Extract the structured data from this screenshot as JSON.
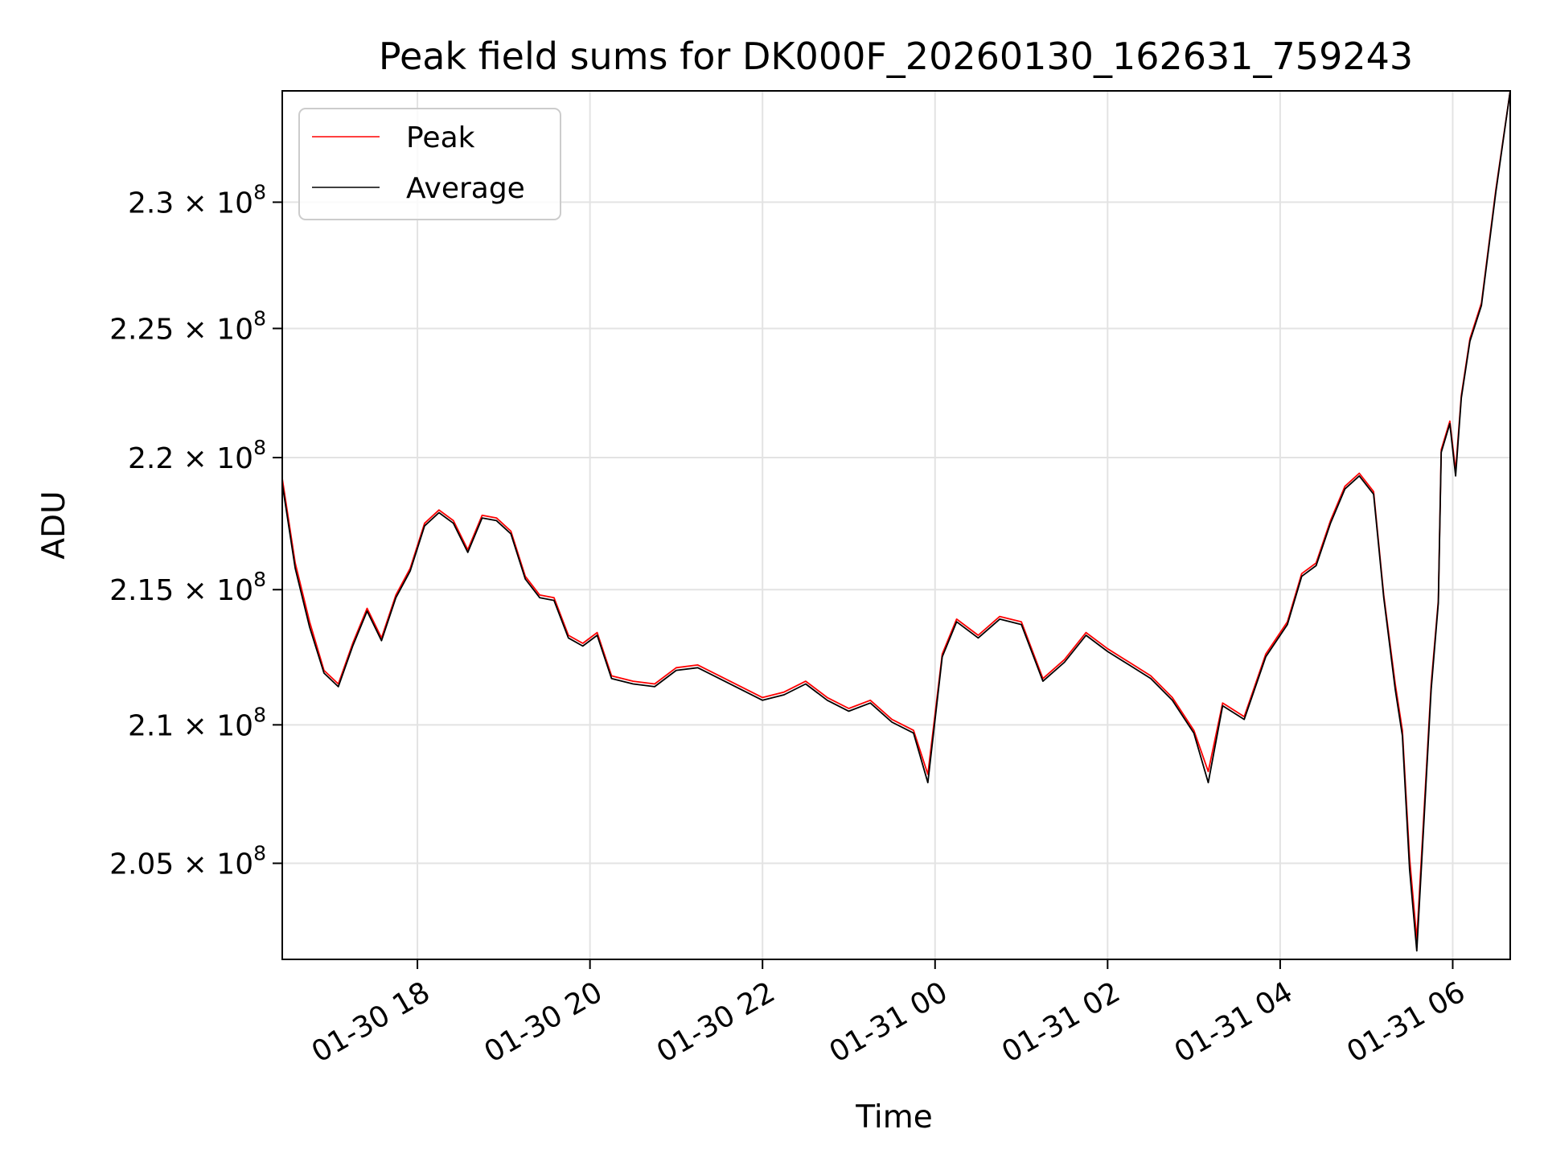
{
  "chart_data": {
    "type": "line",
    "title": "Peak field sums for DK000F_20260130_162631_759243",
    "xlabel": "Time",
    "ylabel": "ADU",
    "y_scale": "log",
    "ylim": [
      201600000,
      234500000
    ],
    "xlim": [
      "2026-01-30 16:26",
      "2026-01-31 06:40"
    ],
    "grid": true,
    "legend_placement": "top-left",
    "x_ticks": [
      {
        "value": "2026-01-30 18:00",
        "label": "01-30 18"
      },
      {
        "value": "2026-01-30 20:00",
        "label": "01-30 20"
      },
      {
        "value": "2026-01-30 22:00",
        "label": "01-30 22"
      },
      {
        "value": "2026-01-31 00:00",
        "label": "01-31 00"
      },
      {
        "value": "2026-01-31 02:00",
        "label": "01-31 02"
      },
      {
        "value": "2026-01-31 04:00",
        "label": "01-31 04"
      },
      {
        "value": "2026-01-31 06:00",
        "label": "01-31 06"
      }
    ],
    "y_ticks": [
      {
        "value": 205000000,
        "mantissa": "2.05"
      },
      {
        "value": 210000000,
        "mantissa": "2.1"
      },
      {
        "value": 215000000,
        "mantissa": "2.15"
      },
      {
        "value": 220000000,
        "mantissa": "2.2"
      },
      {
        "value": 225000000,
        "mantissa": "2.25"
      },
      {
        "value": 230000000,
        "mantissa": "2.3"
      }
    ],
    "tick_suffix": "× 10",
    "tick_exponent": "8",
    "series": [
      {
        "name": "Peak",
        "color": "#ff0000",
        "points": [
          [
            "2026-01-30 16:26",
            219200000
          ],
          [
            "2026-01-30 16:35",
            216000000
          ],
          [
            "2026-01-30 16:45",
            213800000
          ],
          [
            "2026-01-30 16:55",
            212000000
          ],
          [
            "2026-01-30 17:05",
            211500000
          ],
          [
            "2026-01-30 17:15",
            213000000
          ],
          [
            "2026-01-30 17:25",
            214300000
          ],
          [
            "2026-01-30 17:35",
            213200000
          ],
          [
            "2026-01-30 17:45",
            214800000
          ],
          [
            "2026-01-30 17:55",
            215800000
          ],
          [
            "2026-01-30 18:05",
            217500000
          ],
          [
            "2026-01-30 18:15",
            218000000
          ],
          [
            "2026-01-30 18:25",
            217600000
          ],
          [
            "2026-01-30 18:35",
            216500000
          ],
          [
            "2026-01-30 18:45",
            217800000
          ],
          [
            "2026-01-30 18:55",
            217700000
          ],
          [
            "2026-01-30 19:05",
            217200000
          ],
          [
            "2026-01-30 19:15",
            215500000
          ],
          [
            "2026-01-30 19:25",
            214800000
          ],
          [
            "2026-01-30 19:35",
            214700000
          ],
          [
            "2026-01-30 19:45",
            213300000
          ],
          [
            "2026-01-30 19:55",
            213000000
          ],
          [
            "2026-01-30 20:05",
            213400000
          ],
          [
            "2026-01-30 20:15",
            211800000
          ],
          [
            "2026-01-30 20:30",
            211600000
          ],
          [
            "2026-01-30 20:45",
            211500000
          ],
          [
            "2026-01-30 21:00",
            212100000
          ],
          [
            "2026-01-30 21:15",
            212200000
          ],
          [
            "2026-01-30 21:30",
            211800000
          ],
          [
            "2026-01-30 21:45",
            211400000
          ],
          [
            "2026-01-30 22:00",
            211000000
          ],
          [
            "2026-01-30 22:15",
            211200000
          ],
          [
            "2026-01-30 22:30",
            211600000
          ],
          [
            "2026-01-30 22:45",
            211000000
          ],
          [
            "2026-01-30 23:00",
            210600000
          ],
          [
            "2026-01-30 23:15",
            210900000
          ],
          [
            "2026-01-30 23:30",
            210200000
          ],
          [
            "2026-01-30 23:45",
            209800000
          ],
          [
            "2026-01-30 23:55",
            208200000
          ],
          [
            "2026-01-31 00:05",
            212600000
          ],
          [
            "2026-01-31 00:15",
            213900000
          ],
          [
            "2026-01-31 00:30",
            213300000
          ],
          [
            "2026-01-31 00:45",
            214000000
          ],
          [
            "2026-01-31 01:00",
            213800000
          ],
          [
            "2026-01-31 01:15",
            211700000
          ],
          [
            "2026-01-31 01:30",
            212400000
          ],
          [
            "2026-01-31 01:45",
            213400000
          ],
          [
            "2026-01-31 02:00",
            212800000
          ],
          [
            "2026-01-31 02:15",
            212300000
          ],
          [
            "2026-01-31 02:30",
            211800000
          ],
          [
            "2026-01-31 02:45",
            211000000
          ],
          [
            "2026-01-31 03:00",
            209800000
          ],
          [
            "2026-01-31 03:10",
            208300000
          ],
          [
            "2026-01-31 03:20",
            210800000
          ],
          [
            "2026-01-31 03:35",
            210300000
          ],
          [
            "2026-01-31 03:50",
            212600000
          ],
          [
            "2026-01-31 04:05",
            213800000
          ],
          [
            "2026-01-31 04:15",
            215600000
          ],
          [
            "2026-01-31 04:25",
            216000000
          ],
          [
            "2026-01-31 04:35",
            217600000
          ],
          [
            "2026-01-31 04:45",
            218900000
          ],
          [
            "2026-01-31 04:55",
            219400000
          ],
          [
            "2026-01-31 05:05",
            218700000
          ],
          [
            "2026-01-31 05:12",
            214800000
          ],
          [
            "2026-01-31 05:20",
            211500000
          ],
          [
            "2026-01-31 05:25",
            209800000
          ],
          [
            "2026-01-31 05:30",
            205200000
          ],
          [
            "2026-01-31 05:35",
            202300000
          ],
          [
            "2026-01-31 05:40",
            206800000
          ],
          [
            "2026-01-31 05:45",
            211500000
          ],
          [
            "2026-01-31 05:50",
            214600000
          ],
          [
            "2026-01-31 05:52",
            220300000
          ],
          [
            "2026-01-31 05:58",
            221400000
          ],
          [
            "2026-01-31 06:02",
            219500000
          ],
          [
            "2026-01-31 06:06",
            222400000
          ],
          [
            "2026-01-31 06:12",
            224600000
          ],
          [
            "2026-01-31 06:20",
            226000000
          ],
          [
            "2026-01-31 06:30",
            230500000
          ],
          [
            "2026-01-31 06:40",
            234500000
          ]
        ]
      },
      {
        "name": "Average",
        "color": "#000000",
        "points": [
          [
            "2026-01-30 16:26",
            219000000
          ],
          [
            "2026-01-30 16:35",
            215800000
          ],
          [
            "2026-01-30 16:45",
            213600000
          ],
          [
            "2026-01-30 16:55",
            211900000
          ],
          [
            "2026-01-30 17:05",
            211400000
          ],
          [
            "2026-01-30 17:15",
            212900000
          ],
          [
            "2026-01-30 17:25",
            214200000
          ],
          [
            "2026-01-30 17:35",
            213100000
          ],
          [
            "2026-01-30 17:45",
            214700000
          ],
          [
            "2026-01-30 17:55",
            215700000
          ],
          [
            "2026-01-30 18:05",
            217400000
          ],
          [
            "2026-01-30 18:15",
            217900000
          ],
          [
            "2026-01-30 18:25",
            217500000
          ],
          [
            "2026-01-30 18:35",
            216400000
          ],
          [
            "2026-01-30 18:45",
            217700000
          ],
          [
            "2026-01-30 18:55",
            217600000
          ],
          [
            "2026-01-30 19:05",
            217100000
          ],
          [
            "2026-01-30 19:15",
            215400000
          ],
          [
            "2026-01-30 19:25",
            214700000
          ],
          [
            "2026-01-30 19:35",
            214600000
          ],
          [
            "2026-01-30 19:45",
            213200000
          ],
          [
            "2026-01-30 19:55",
            212900000
          ],
          [
            "2026-01-30 20:05",
            213300000
          ],
          [
            "2026-01-30 20:15",
            211700000
          ],
          [
            "2026-01-30 20:30",
            211500000
          ],
          [
            "2026-01-30 20:45",
            211400000
          ],
          [
            "2026-01-30 21:00",
            212000000
          ],
          [
            "2026-01-30 21:15",
            212100000
          ],
          [
            "2026-01-30 21:30",
            211700000
          ],
          [
            "2026-01-30 21:45",
            211300000
          ],
          [
            "2026-01-30 22:00",
            210900000
          ],
          [
            "2026-01-30 22:15",
            211100000
          ],
          [
            "2026-01-30 22:30",
            211500000
          ],
          [
            "2026-01-30 22:45",
            210900000
          ],
          [
            "2026-01-30 23:00",
            210500000
          ],
          [
            "2026-01-30 23:15",
            210800000
          ],
          [
            "2026-01-30 23:30",
            210100000
          ],
          [
            "2026-01-30 23:45",
            209700000
          ],
          [
            "2026-01-30 23:55",
            207900000
          ],
          [
            "2026-01-31 00:05",
            212500000
          ],
          [
            "2026-01-31 00:15",
            213800000
          ],
          [
            "2026-01-31 00:30",
            213200000
          ],
          [
            "2026-01-31 00:45",
            213900000
          ],
          [
            "2026-01-31 01:00",
            213700000
          ],
          [
            "2026-01-31 01:15",
            211600000
          ],
          [
            "2026-01-31 01:30",
            212300000
          ],
          [
            "2026-01-31 01:45",
            213300000
          ],
          [
            "2026-01-31 02:00",
            212700000
          ],
          [
            "2026-01-31 02:15",
            212200000
          ],
          [
            "2026-01-31 02:30",
            211700000
          ],
          [
            "2026-01-31 02:45",
            210900000
          ],
          [
            "2026-01-31 03:00",
            209700000
          ],
          [
            "2026-01-31 03:10",
            207900000
          ],
          [
            "2026-01-31 03:20",
            210700000
          ],
          [
            "2026-01-31 03:35",
            210200000
          ],
          [
            "2026-01-31 03:50",
            212500000
          ],
          [
            "2026-01-31 04:05",
            213700000
          ],
          [
            "2026-01-31 04:15",
            215500000
          ],
          [
            "2026-01-31 04:25",
            215900000
          ],
          [
            "2026-01-31 04:35",
            217500000
          ],
          [
            "2026-01-31 04:45",
            218800000
          ],
          [
            "2026-01-31 04:55",
            219300000
          ],
          [
            "2026-01-31 05:05",
            218600000
          ],
          [
            "2026-01-31 05:12",
            214700000
          ],
          [
            "2026-01-31 05:20",
            211300000
          ],
          [
            "2026-01-31 05:25",
            209600000
          ],
          [
            "2026-01-31 05:30",
            204800000
          ],
          [
            "2026-01-31 05:35",
            201900000
          ],
          [
            "2026-01-31 05:40",
            206500000
          ],
          [
            "2026-01-31 05:45",
            211300000
          ],
          [
            "2026-01-31 05:50",
            214500000
          ],
          [
            "2026-01-31 05:52",
            220200000
          ],
          [
            "2026-01-31 05:58",
            221300000
          ],
          [
            "2026-01-31 06:02",
            219300000
          ],
          [
            "2026-01-31 06:06",
            222300000
          ],
          [
            "2026-01-31 06:12",
            224500000
          ],
          [
            "2026-01-31 06:20",
            225900000
          ],
          [
            "2026-01-31 06:30",
            230400000
          ],
          [
            "2026-01-31 06:40",
            234500000
          ]
        ]
      }
    ]
  }
}
